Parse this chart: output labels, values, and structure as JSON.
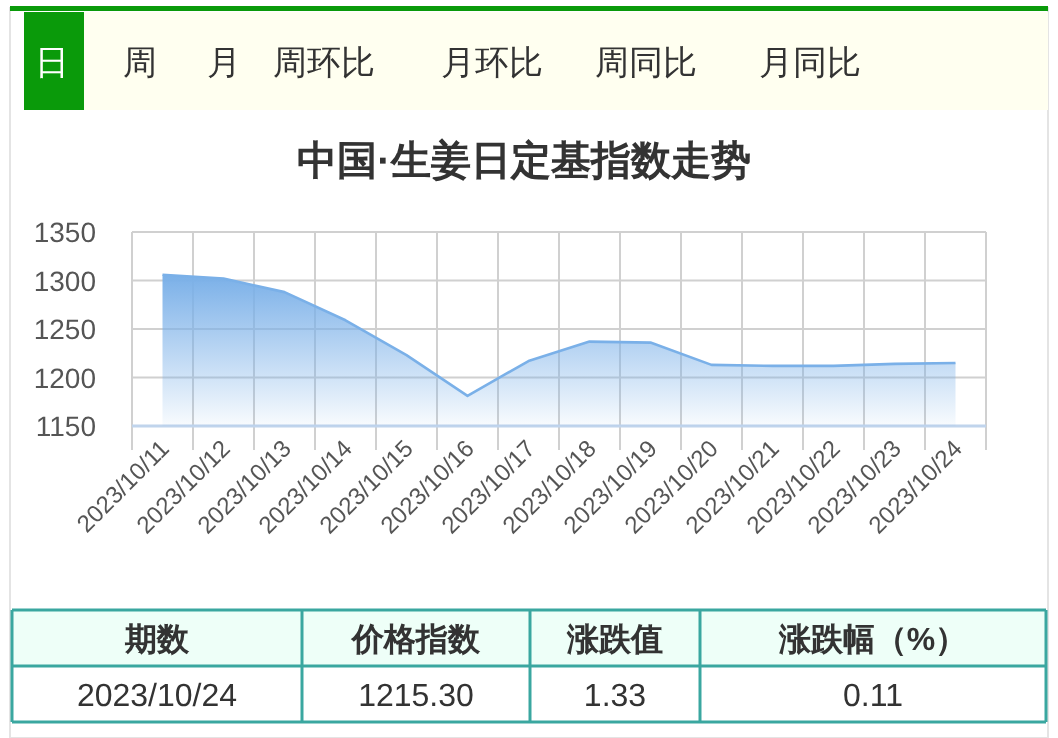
{
  "chart_data": [
    {
      "type": "other",
      "annotations": [
        "日",
        "周",
        "月",
        "周环比",
        "月环比",
        "周同比",
        "月同比"
      ]
    },
    {
      "type": "area",
      "title": "中国·生姜日定基指数走势",
      "categories": [
        "2023/10/11",
        "2023/10/12",
        "2023/10/13",
        "2023/10/14",
        "2023/10/15",
        "2023/10/16",
        "2023/10/17",
        "2023/10/18",
        "2023/10/19",
        "2023/10/20",
        "2023/10/21",
        "2023/10/22",
        "2023/10/23",
        "2023/10/24"
      ],
      "series": [
        {
          "color": "#7ab0e8",
          "values": [
            1306,
            1302,
            1288,
            1259,
            1223,
            1181,
            1217,
            1237,
            1236,
            1213,
            1212,
            1212,
            1214,
            1215
          ]
        }
      ],
      "ylim": [
        1150,
        1350
      ],
      "yticks": [
        1150,
        1200,
        1250,
        1300,
        1350
      ],
      "grid": true
    },
    {
      "type": "other",
      "annotations": [
        "期数",
        "价格指数",
        "涨跌值",
        "涨跌幅（%）",
        "2023/10/24",
        "1215.30",
        "1.33",
        "0.11"
      ]
    }
  ]
}
